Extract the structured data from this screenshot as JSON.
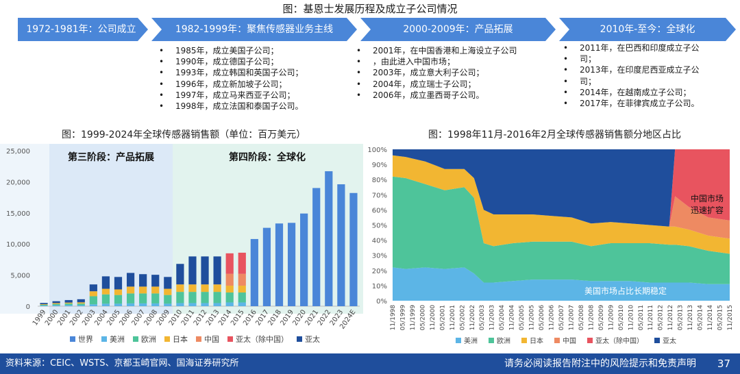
{
  "header": {
    "title": "图：基恩士发展历程及成立子公司情况"
  },
  "timeline": {
    "stages": [
      {
        "label": "1972-1981年：公司成立"
      },
      {
        "label": "1982-1999年：聚焦传感器业务主线"
      },
      {
        "label": "2000-2009年：产品拓展"
      },
      {
        "label": "2010年-至今：全球化"
      }
    ],
    "col2": [
      "1985年，成立美国子公司；",
      "1990年，成立德国子公司；",
      "1993年，成立韩国和英国子公司；",
      "1996年，成立新加坡子公司；",
      "1997年，成立马来西亚子公司；",
      "1998年，成立法国和泰国子公司。"
    ],
    "col3": [
      "2001年，在中国香港和上海设立子公司",
      "，由此进入中国市场；",
      "2003年，成立意大利子公司；",
      "2004年，成立瑞士子公司；",
      "2006年，成立墨西哥子公司。"
    ],
    "col4": [
      "2011年，在巴西和印度成立子公",
      "司；",
      "2013年，在印度尼西亚成立子公",
      "司；",
      "2014年，在越南成立子公司；",
      "2017年，在菲律宾成立子公司。"
    ]
  },
  "left_chart_title": "图：1999-2024年全球传感器销售额（单位：百万美元）",
  "right_chart_title": "图：1998年11月-2016年2月全球传感器销售额分地区占比",
  "footer": {
    "source": "资料来源：CEIC、WSTS、京都玉崎官网、国海证券研究所",
    "disclaimer": "请务必阅读报告附注中的风险提示和免责声明",
    "page": "37"
  },
  "colors": {
    "arrow": "#4a86d8",
    "world": "#4a86d8",
    "americas": "#5cb5e6",
    "europe": "#4ec49a",
    "japan": "#f2b632",
    "china": "#ee8a62",
    "apac_ex_china": "#e8545f",
    "apac": "#1f4e9c",
    "footer": "#1f4e9c"
  },
  "chart_data": [
    {
      "type": "bar",
      "title": "图：1999-2024年全球传感器销售额（单位：百万美元）",
      "ylim": [
        0,
        25000
      ],
      "yticks": [
        "0",
        "5,000",
        "10,000",
        "15,000",
        "20,000",
        "25,000"
      ],
      "categories": [
        "1999",
        "2000",
        "2001",
        "2002",
        "2003",
        "2004",
        "2005",
        "2006",
        "2007",
        "2008",
        "2009",
        "2010",
        "2011",
        "2012",
        "2013",
        "2014",
        "2015",
        "2016",
        "2017",
        "2018",
        "2019",
        "2020",
        "2021",
        "2022",
        "2023",
        "2024E"
      ],
      "phase_labels": [
        "第三阶段：产品拓展",
        "第四阶段：全球化"
      ],
      "legend": [
        "世界",
        "美洲",
        "欧洲",
        "日本",
        "中国",
        "亚太（除中国）",
        "亚太"
      ],
      "series": [
        {
          "name": "美洲",
          "values": [
            100,
            150,
            180,
            170,
            300,
            400,
            400,
            450,
            450,
            450,
            400,
            500,
            500,
            500,
            500,
            600,
            600,
            null,
            null,
            null,
            null,
            null,
            null,
            null,
            null,
            null
          ]
        },
        {
          "name": "欧洲",
          "values": [
            120,
            200,
            250,
            250,
            1300,
            1500,
            1400,
            1600,
            1600,
            1600,
            1400,
            1800,
            1800,
            1800,
            1800,
            1600,
            1600,
            null,
            null,
            null,
            null,
            null,
            null,
            null,
            null,
            null
          ]
        },
        {
          "name": "日本",
          "values": [
            100,
            150,
            150,
            200,
            800,
            900,
            900,
            1100,
            1100,
            1100,
            1000,
            1200,
            1200,
            1200,
            1200,
            1100,
            1100,
            null,
            null,
            null,
            null,
            null,
            null,
            null,
            null,
            null
          ]
        },
        {
          "name": "中国",
          "values": [
            null,
            null,
            null,
            null,
            null,
            null,
            null,
            null,
            null,
            null,
            null,
            null,
            null,
            null,
            null,
            1900,
            1900,
            null,
            null,
            null,
            null,
            null,
            null,
            null,
            null,
            null
          ]
        },
        {
          "name": "亚太（除中国）",
          "values": [
            null,
            null,
            null,
            null,
            null,
            null,
            null,
            null,
            null,
            null,
            null,
            null,
            null,
            null,
            null,
            3300,
            3400,
            null,
            null,
            null,
            null,
            null,
            null,
            null,
            null,
            null
          ]
        },
        {
          "name": "亚太",
          "values": [
            200,
            300,
            400,
            500,
            1100,
            2000,
            2000,
            2200,
            2000,
            1900,
            1900,
            3300,
            4500,
            4500,
            4500,
            null,
            null,
            null,
            null,
            null,
            null,
            null,
            null,
            null,
            null,
            null
          ]
        },
        {
          "name": "世界",
          "values": [
            null,
            null,
            null,
            null,
            null,
            null,
            null,
            null,
            null,
            null,
            null,
            null,
            null,
            null,
            null,
            null,
            null,
            10800,
            12600,
            13300,
            13400,
            14900,
            19000,
            21700,
            19600,
            18200
          ]
        }
      ]
    },
    {
      "type": "area",
      "title": "图：1998年11月-2016年2月全球传感器销售额分地区占比",
      "ylim": [
        0,
        100
      ],
      "yticks": [
        "0%",
        "10%",
        "20%",
        "30%",
        "40%",
        "50%",
        "60%",
        "70%",
        "80%",
        "90%",
        "100%"
      ],
      "xticks": [
        "11/1998",
        "05/1999",
        "11/1999",
        "05/2000",
        "11/2000",
        "05/2001",
        "11/2001",
        "05/2002",
        "11/2002",
        "05/2003",
        "11/2003",
        "05/2004",
        "11/2004",
        "05/2005",
        "11/2005",
        "05/2006",
        "11/2006",
        "05/2007",
        "11/2007",
        "05/2008",
        "11/2008",
        "05/2009",
        "11/2009",
        "05/2010",
        "11/2010",
        "05/2011",
        "11/2011",
        "05/2012",
        "11/2012",
        "05/2013",
        "11/2013",
        "05/2014",
        "11/2014",
        "05/2015",
        "11/2015"
      ],
      "legend": [
        "美洲",
        "欧洲",
        "日本",
        "中国",
        "亚太（除中国）",
        "亚太"
      ],
      "annotations": [
        "中国市场迅速扩容",
        "美国市场占比长期稳定"
      ],
      "x": [
        1998.83,
        1999.5,
        2000.5,
        2001.5,
        2002.5,
        2003.0,
        2003.5,
        2004.0,
        2005.0,
        2006.0,
        2007.0,
        2008.0,
        2009.0,
        2010.0,
        2011.0,
        2012.0,
        2013.0,
        2013.3,
        2014.0,
        2015.0,
        2016.1
      ],
      "series": [
        {
          "name": "美洲",
          "values": [
            22,
            21,
            22,
            21,
            22,
            18,
            12,
            12,
            13,
            14,
            14,
            14,
            13,
            13,
            13,
            12,
            12,
            12,
            12,
            11,
            11
          ]
        },
        {
          "name": "欧洲",
          "values": [
            60,
            60,
            55,
            52,
            53,
            50,
            26,
            24,
            25,
            25,
            25,
            25,
            23,
            25,
            25,
            26,
            25,
            25,
            24,
            22,
            20
          ]
        },
        {
          "name": "日本",
          "values": [
            14,
            14,
            15,
            14,
            12,
            13,
            22,
            21,
            19,
            18,
            17,
            16,
            15,
            14,
            13,
            12,
            12,
            12,
            11,
            10,
            10
          ]
        },
        {
          "name": "中国",
          "values": [
            0,
            0,
            0,
            0,
            0,
            0,
            0,
            0,
            0,
            0,
            0,
            0,
            0,
            0,
            0,
            0,
            0,
            20,
            15,
            12,
            12
          ]
        },
        {
          "name": "亚太（除中国）",
          "values": [
            0,
            0,
            0,
            0,
            0,
            0,
            0,
            0,
            0,
            0,
            0,
            0,
            0,
            0,
            0,
            0,
            0,
            31,
            38,
            45,
            47
          ]
        },
        {
          "name": "亚太",
          "values": [
            4,
            5,
            8,
            13,
            13,
            19,
            40,
            43,
            43,
            43,
            44,
            45,
            49,
            48,
            49,
            50,
            51,
            0,
            0,
            0,
            0
          ]
        }
      ]
    }
  ]
}
